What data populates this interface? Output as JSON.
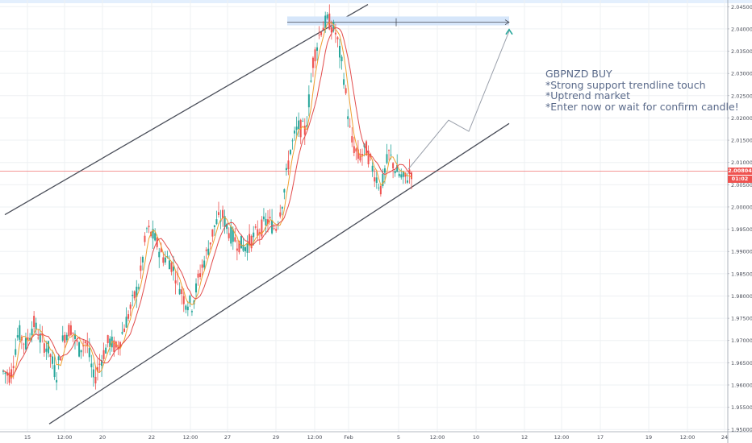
{
  "chart_data": {
    "type": "candlestick",
    "symbol_note": "GBPNZD BUY",
    "annotations": [
      "*Strong support trendline touch",
      "*Uptrend market",
      "*Enter now or wait for confirm candle!"
    ],
    "x_ticks": [
      "15",
      "12:00",
      "20",
      "22",
      "12:00",
      "27",
      "29",
      "12:00",
      "Feb",
      "5",
      "12:00",
      "10",
      "12",
      "12:00",
      "17",
      "19",
      "12:00",
      "24"
    ],
    "y_ticks": [
      "2.04500",
      "2.04000",
      "2.03500",
      "2.03000",
      "2.02500",
      "2.02000",
      "2.01500",
      "2.01000",
      "2.00500",
      "2.00000",
      "1.99500",
      "1.99000",
      "1.98500",
      "1.98000",
      "1.97500",
      "1.97000",
      "1.96500",
      "1.96000",
      "1.95500",
      "1.95000"
    ],
    "ylim": [
      1.9495,
      2.0465
    ],
    "current_price": "2.00804",
    "countdown": "01:02",
    "current_price_value": 2.00804,
    "close_path": [
      1.963,
      1.962,
      1.972,
      1.969,
      1.974,
      1.97,
      1.968,
      1.962,
      1.971,
      1.973,
      1.968,
      1.97,
      1.961,
      1.966,
      1.97,
      1.968,
      1.973,
      1.978,
      1.983,
      1.995,
      1.993,
      1.989,
      1.988,
      1.984,
      1.979,
      1.978,
      1.985,
      1.99,
      1.996,
      1.998,
      1.994,
      1.992,
      1.991,
      1.993,
      1.995,
      1.997,
      1.995,
      2.002,
      2.013,
      2.018,
      2.017,
      2.033,
      2.04,
      2.042,
      2.039,
      2.03,
      2.015,
      2.011,
      2.013,
      2.008,
      2.004,
      2.012,
      2.008,
      2.006,
      2.008
    ],
    "channel_upper": {
      "start": [
        0,
        1.99825
      ],
      "end": [
        90,
        2.0455
      ]
    },
    "channel_lower": {
      "start": [
        11,
        1.95125
      ],
      "end": [
        125,
        2.01875
      ]
    },
    "resistance_zone": [
      2.0408,
      2.0428
    ],
    "resistance_line": 2.0415,
    "projection": [
      [
        100,
        2.0085
      ],
      [
        110,
        2.0195
      ],
      [
        115,
        2.017
      ],
      [
        125,
        2.0395
      ]
    ],
    "grid": true
  }
}
